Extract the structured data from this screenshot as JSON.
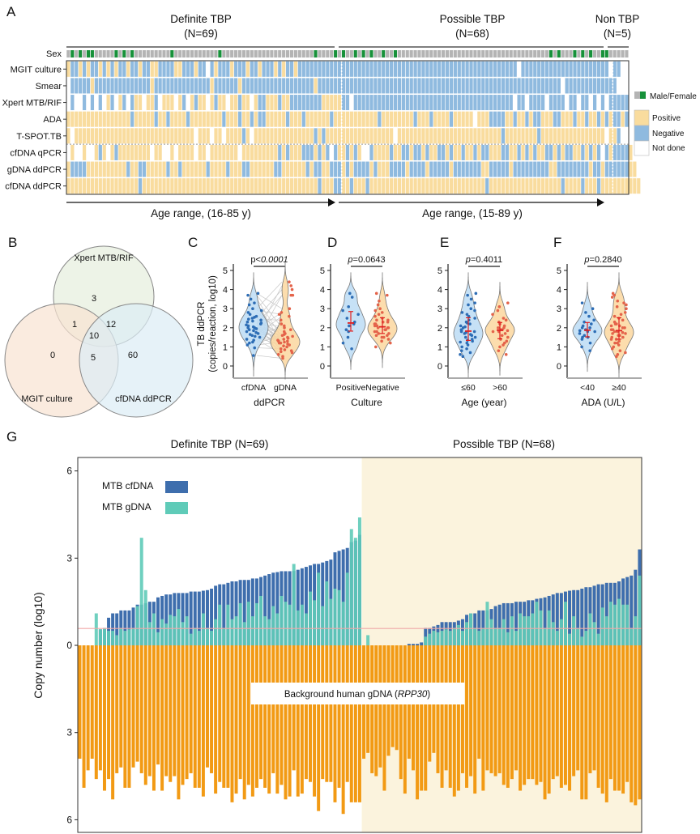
{
  "panel_a": {
    "letter": "A",
    "groups": [
      {
        "title": "Definite TBP",
        "n": "(N=69)"
      },
      {
        "title": "Possible TBP",
        "n": "(N=68)"
      },
      {
        "title": "Non TBP",
        "n": "(N=5)"
      }
    ],
    "sex_label": "Sex",
    "sex": "MFMFMFFMMMMMFMFMFMMMMMMMMMFMMMMMMMMMMMFMMMMMMMMMMMMMMMMMMMMMMMFMMMMFMFMMFMFMFMMFMMFMMMMMMMMMMMMMMMMMMMMMMMMMMMMMMMMMMMMMMFMFMMMFMFMFMMFFMMMMM",
    "rows": [
      {
        "label": "MGIT culture",
        "values": "PNNPNPNNPNPNPNNPNNPNNPPNNNNPPNNNPNNXNPNNNPNNNPNNPNNNPNPNNPNNNNNNNNNNNNNNNNNNNNNNNNNNNNNNNNNNNNNNNNNNNNNNNNNNNNNNNXNNNNNNNNNNNNNNNNNNNNNNXNN"
      },
      {
        "label": "Smear",
        "values": "XNNNNNPNNNNNNNNNNNNNNPNNNNNNNNNNNNNNPNNNNNNPNNNNNNNNNNNNNNNNNNPNNNNNNNNNNNNNNNNNNNNNNNNNNNNNNNNNNNNNNNNNNNNNNNNNNNNNNNNNNNNNXNNNNNNNNNNNNN"
      },
      {
        "label": "Xpert MTB/RIF",
        "values": "XNXXNXNXNXPNXPNXNPPXPPNXPPPXPNXPNPPXPNPPXPPNPPXPNNPPPNPPNNNNNNNNPPPPPNNXNNNNNNNNNNNNNNNNNNNNNNNNNNNNNNNNNNNNNNNNXNNXNNNNXNNNNXNNXNNXNXNXNNNNN"
      },
      {
        "label": "ADA",
        "values": "PPPPPPPPPPPPPPPPNPPPPPNPPNPPPPNPPPPPPPPNPPPNPPNPNNPPPPPNPPPNPPPPPPNPPPPPPPPPPPNPPPPPPPPNPPPNPPPPNPPPPPXPPPNNNNPPNPPNPNNPPPNNPPPNPPNPPNPNPNNPN"
      },
      {
        "label": "T-SPOT.TB",
        "values": "PXPPPPPPPPPPPPPPPPPPPPPPPPPPPPPPXPPPXPPXPPPPNPXPPPPPPPPPPPPPPPNPNPPPPPPPPPPPPPPPPPXPPPPPPPPPPPPPPPPPPPPPPPPPPNPPPPPPPPNPPPPPPPPPPPPPPPPXPPNXX"
      },
      {
        "label": "cfDNA qPCR",
        "values": "XPXXPXXPNPXPNPPPPPPPPXPPXXPXPPPPXPPXPPPPPPPXPPPPPPPPPNPNPPPNNNPNPNXNPPNPNPXXNPPPPNPPNNPNNPNPPNNPNPPNPPNPNNPPPNNPPNPNPNPPNNPNPNNPPNPNPNXNPNNNNP"
      },
      {
        "label": "gDNA ddPCR",
        "values": "PNNNNPPPPPPPPPPNPPNNPPPPPNPPNPPPPPPNPPPPNPPPNNPPPPPPNNPPPPPPNPNNPPNNNPNPNNNNPNPPPNNNNPNNNNPNNNNNPNNNNNNNPPNNNNNPNNNNNNNNNPPNNNNNNNNPNNPNNNNNNPP"
      },
      {
        "label": "cfDNA ddPCR",
        "values": "PPPPPPPPPPPPPPPPPPNPPPPPPPPPPPPPPPPPPPPPPPPPPPPPPPPPPPPPPPPPPPPNPPPNNPPNPPPNPPPPPPPPPPPPPPPPPPPPPPPPPPPPPNPPPPPPPPPPPPPPPPPPNPPPPNPPPNPPPPPPPPPP"
      }
    ],
    "age_ranges": [
      "Age range, (16-85 y)",
      "Age range, (15-89 y)"
    ],
    "legend": {
      "sex": "Male/Female",
      "positive": "Positive",
      "negative": "Negative",
      "not_done": "Not done"
    },
    "colors": {
      "positive": "#f9dc9e",
      "negative": "#8fbadf",
      "not_done": "#ffffff",
      "male": "#b4b4b4",
      "female": "#17913a"
    }
  },
  "panel_b": {
    "letter": "B",
    "sets": [
      "Xpert MTB/RIF",
      "MGIT culture",
      "cfDNA ddPCR"
    ],
    "regions": {
      "xpert_only": "3",
      "xpert_mgit": "1",
      "xpert_cfdna": "12",
      "all_three": "10",
      "mgit_only": "0",
      "mgit_cfdna": "5",
      "cfdna_only": "60"
    }
  },
  "chart_data": [
    {
      "type": "violin",
      "letter": "C",
      "ylabel": "TB ddPCR",
      "ylabel2": "(copies/reaction, log10)",
      "xlabel": "ddPCR",
      "p_prefix": "p<",
      "p_value": "0.0001",
      "ylim": [
        0,
        5
      ],
      "yticks": [
        "0",
        "1",
        "2",
        "3",
        "4",
        "5"
      ],
      "paired": true,
      "categories": [
        "cfDNA",
        "gDNA"
      ],
      "series": [
        {
          "values": [
            0.55,
            0.95,
            1.1,
            1.2,
            1.25,
            1.35,
            1.4,
            1.5,
            1.55,
            1.6,
            1.65,
            1.7,
            1.75,
            1.8,
            1.85,
            1.9,
            1.95,
            2.0,
            2.0,
            2.05,
            2.1,
            2.15,
            2.2,
            2.25,
            2.3,
            2.35,
            2.4,
            2.45,
            2.5,
            2.55,
            2.6,
            2.7,
            2.8,
            2.9,
            3.0,
            3.2,
            3.3,
            3.5,
            3.7,
            3.8
          ]
        },
        {
          "values": [
            0.4,
            0.5,
            0.6,
            0.7,
            0.75,
            0.8,
            0.85,
            0.9,
            1.0,
            1.05,
            1.1,
            1.15,
            1.2,
            1.2,
            1.25,
            1.3,
            1.35,
            1.4,
            1.45,
            1.5,
            1.55,
            1.6,
            1.65,
            1.7,
            1.8,
            1.9,
            2.0,
            2.1,
            2.2,
            2.4,
            2.6,
            2.7,
            2.8,
            3.0,
            3.7,
            3.7,
            4.0,
            4.2,
            4.4,
            1.3
          ]
        }
      ]
    },
    {
      "type": "violin",
      "letter": "D",
      "xlabel": "Culture",
      "p_prefix": "p",
      "p_value": "=0.0643",
      "ylim": [
        0,
        5
      ],
      "yticks": [
        "0",
        "1",
        "2",
        "3",
        "4",
        "5"
      ],
      "categories": [
        "Positive",
        "Negative"
      ],
      "series": [
        {
          "values": [
            0.9,
            1.2,
            1.5,
            1.8,
            1.9,
            2.1,
            2.2,
            2.3,
            2.5,
            2.7,
            2.9,
            3.1,
            3.6,
            3.8
          ]
        },
        {
          "values": [
            1.0,
            1.2,
            1.3,
            1.4,
            1.5,
            1.5,
            1.6,
            1.6,
            1.7,
            1.7,
            1.8,
            1.8,
            1.9,
            1.9,
            1.9,
            2.0,
            2.0,
            2.0,
            2.1,
            2.1,
            2.2,
            2.2,
            2.3,
            2.3,
            2.4,
            2.4,
            2.5,
            2.6,
            2.7,
            2.8,
            2.9,
            3.0,
            3.2,
            3.4,
            3.7,
            3.8
          ]
        }
      ]
    },
    {
      "type": "violin",
      "letter": "E",
      "xlabel": "Age (year)",
      "p_prefix": "p",
      "p_value": "=0.4011",
      "ylim": [
        0,
        5
      ],
      "yticks": [
        "0",
        "1",
        "2",
        "3",
        "4",
        "5"
      ],
      "categories": [
        "≤60",
        ">60"
      ],
      "series": [
        {
          "values": [
            0.5,
            0.6,
            0.7,
            0.8,
            0.9,
            1.0,
            1.1,
            1.2,
            1.25,
            1.3,
            1.35,
            1.4,
            1.5,
            1.5,
            1.6,
            1.65,
            1.7,
            1.75,
            1.8,
            1.8,
            1.85,
            1.9,
            2.0,
            2.05,
            2.1,
            2.2,
            2.25,
            2.3,
            2.4,
            2.5,
            2.6,
            2.7,
            2.8,
            2.9,
            3.0,
            3.2,
            3.3,
            3.5,
            3.7,
            3.8
          ]
        },
        {
          "values": [
            0.6,
            0.8,
            1.0,
            1.1,
            1.2,
            1.3,
            1.4,
            1.5,
            1.6,
            1.7,
            1.8,
            1.8,
            1.85,
            1.9,
            1.9,
            2.0,
            2.0,
            2.1,
            2.2,
            2.3,
            2.4,
            2.5,
            2.7,
            2.9,
            3.1,
            3.3
          ]
        }
      ]
    },
    {
      "type": "violin",
      "letter": "F",
      "xlabel": "ADA (U/L)",
      "p_prefix": "p",
      "p_value": "=0.2840",
      "ylim": [
        0,
        5
      ],
      "yticks": [
        "0",
        "1",
        "2",
        "3",
        "4",
        "5"
      ],
      "categories": [
        "<40",
        "≥40"
      ],
      "series": [
        {
          "values": [
            0.8,
            1.0,
            1.2,
            1.4,
            1.5,
            1.5,
            1.6,
            1.7,
            1.8,
            1.8,
            1.85,
            1.9,
            2.0,
            2.0,
            2.1,
            2.2,
            2.3,
            2.4,
            2.6,
            2.8,
            3.0,
            3.3
          ]
        },
        {
          "values": [
            0.5,
            0.6,
            0.7,
            0.8,
            0.9,
            1.0,
            1.1,
            1.2,
            1.2,
            1.3,
            1.4,
            1.4,
            1.5,
            1.5,
            1.6,
            1.6,
            1.7,
            1.7,
            1.8,
            1.8,
            1.8,
            1.9,
            1.9,
            2.0,
            2.0,
            2.1,
            2.1,
            2.2,
            2.2,
            2.3,
            2.4,
            2.5,
            2.6,
            2.7,
            2.8,
            3.0,
            3.1,
            3.2,
            3.3,
            3.4,
            3.6,
            3.7,
            3.8,
            1.75
          ]
        }
      ]
    },
    {
      "type": "bar",
      "letter": "G",
      "ylabel": "Copy number (log10)",
      "groups": [
        "Definite TBP (N=69)",
        "Possible TBP (N=68)"
      ],
      "ylim": [
        -6.4,
        6.5
      ],
      "yticks_up": [
        "3",
        "6"
      ],
      "yticks_down": [
        "3",
        "6"
      ],
      "ytick_zero": "0",
      "threshold": 0.58,
      "background_label_prefix": "Background human gDNA (",
      "background_label_italic": "RPP30",
      "background_label_suffix": ")",
      "series": [
        {
          "name": "MTB cfDNA",
          "color": "#3e6ead",
          "definite": [
            0,
            0,
            0,
            0,
            0,
            0.55,
            0.6,
            0.95,
            1.1,
            1.1,
            1.2,
            1.2,
            1.2,
            1.3,
            1.4,
            1.4,
            1.45,
            1.5,
            1.5,
            1.65,
            1.7,
            1.75,
            1.75,
            1.8,
            1.8,
            1.8,
            1.8,
            1.85,
            1.85,
            1.85,
            1.88,
            1.9,
            1.95,
            2.05,
            2.1,
            2.1,
            2.15,
            2.2,
            2.2,
            2.25,
            2.25,
            2.25,
            2.3,
            2.3,
            2.35,
            2.4,
            2.45,
            2.5,
            2.52,
            2.55,
            2.55,
            2.55,
            2.56,
            2.6,
            2.65,
            2.7,
            2.75,
            2.8,
            2.8,
            2.85,
            2.9,
            2.95,
            3.2,
            3.25,
            3.3,
            3.35,
            3.55,
            3.6,
            3.8
          ],
          "possible": [
            0,
            0,
            0,
            0,
            0,
            0,
            0,
            0,
            0,
            0,
            0,
            0.05,
            0.05,
            0.05,
            0.1,
            0.6,
            0.6,
            0.65,
            0.7,
            0.8,
            0.8,
            0.8,
            0.8,
            0.85,
            0.9,
            1.05,
            1.1,
            1.1,
            1.2,
            1.2,
            1.2,
            1.25,
            1.35,
            1.4,
            1.45,
            1.45,
            1.45,
            1.5,
            1.5,
            1.5,
            1.55,
            1.55,
            1.6,
            1.62,
            1.65,
            1.7,
            1.75,
            1.8,
            1.8,
            1.85,
            1.88,
            1.9,
            1.9,
            1.95,
            2.0,
            2.0,
            2.05,
            2.1,
            2.1,
            2.15,
            2.15,
            2.15,
            2.2,
            2.3,
            2.35,
            2.4,
            2.6,
            3.3
          ]
        },
        {
          "name": "MTB gDNA",
          "color": "#5fcbb8",
          "definite": [
            0,
            0,
            0,
            0,
            1.1,
            0.55,
            0.6,
            0.5,
            0.5,
            0.35,
            0.6,
            0.5,
            0.55,
            0.6,
            1.35,
            3.7,
            1.9,
            0.8,
            1.1,
            0.45,
            0.9,
            0.75,
            1.05,
            1.0,
            1.25,
            0.8,
            1.0,
            0.4,
            0.6,
            0.5,
            1.1,
            0.6,
            0.5,
            0.9,
            1.4,
            0.6,
            1.4,
            0.9,
            1.0,
            1.45,
            0.8,
            1.5,
            1.0,
            1.45,
            1.7,
            1.0,
            0.9,
            1.35,
            1.1,
            1.7,
            1.5,
            1.4,
            2.8,
            1.2,
            1.4,
            1.1,
            1.85,
            1.55,
            2.5,
            1.35,
            2.2,
            1.6,
            1.95,
            1.9,
            1.5,
            2.5,
            4.0,
            3.7,
            4.4
          ],
          "possible": [
            0,
            0.35,
            0,
            0,
            0,
            0,
            0,
            0,
            0,
            0,
            0,
            0,
            0,
            0,
            0,
            0.3,
            0.4,
            0.5,
            0.45,
            0.5,
            0.55,
            0.5,
            0.6,
            0.7,
            0.5,
            0.8,
            1.1,
            0.6,
            0.5,
            0.6,
            1.5,
            0.9,
            0.6,
            0.6,
            0.9,
            0.45,
            1.0,
            0.5,
            1.1,
            1.0,
            1.0,
            1.1,
            1.5,
            1.2,
            0.6,
            1.2,
            0.8,
            0.5,
            0.9,
            1.5,
            0.4,
            1.0,
            0.6,
            0.3,
            0.5,
            1.1,
            0.8,
            0.4,
            1.3,
            1.0,
            1.5,
            1.4,
            1.6,
            1.4,
            1.4,
            0.6,
            1.0,
            2.4
          ]
        },
        {
          "name": "RPP30",
          "color": "#f29a14",
          "definite": [
            3.9,
            4.9,
            4.3,
            3.9,
            4.6,
            4.3,
            5.0,
            4.6,
            5.3,
            4.4,
            4.2,
            4.9,
            4.9,
            4.2,
            4.0,
            4.4,
            4.8,
            4.5,
            5.0,
            4.1,
            5.0,
            4.5,
            4.7,
            4.5,
            5.3,
            4.8,
            4.6,
            4.4,
            4.9,
            4.9,
            5.2,
            4.2,
            4.4,
            5.1,
            4.7,
            4.9,
            4.9,
            5.4,
            5.1,
            4.6,
            5.3,
            4.8,
            5.2,
            4.9,
            4.6,
            4.9,
            5.1,
            4.4,
            5.1,
            4.8,
            5.3,
            5.2,
            4.3,
            5.2,
            5.1,
            4.6,
            4.7,
            5.2,
            5.7,
            4.6,
            4.7,
            4.7,
            5.4,
            4.9,
            5.8,
            4.7,
            5.4,
            5.4,
            5.4
          ],
          "possible": [
            3.9,
            3.7,
            4.4,
            4.5,
            4.2,
            5.0,
            3.8,
            3.5,
            3.6,
            4.6,
            5.1,
            3.9,
            4.3,
            5.3,
            5.0,
            5.0,
            4.0,
            3.7,
            4.4,
            4.9,
            4.3,
            4.9,
            5.2,
            5.0,
            4.4,
            4.9,
            4.5,
            5.1,
            3.9,
            5.0,
            4.3,
            4.4,
            4.5,
            4.4,
            4.8,
            4.9,
            4.6,
            4.3,
            5.0,
            4.8,
            4.6,
            4.6,
            4.8,
            4.7,
            5.3,
            5.1,
            4.6,
            4.5,
            4.9,
            4.8,
            5.0,
            4.5,
            4.3,
            5.3,
            5.3,
            4.4,
            4.3,
            4.9,
            5.1,
            5.4,
            4.6,
            5.0,
            5.0,
            5.1,
            4.7,
            5.4,
            5.5,
            5.3
          ]
        }
      ],
      "shade_color": "#fbf3dd"
    }
  ]
}
